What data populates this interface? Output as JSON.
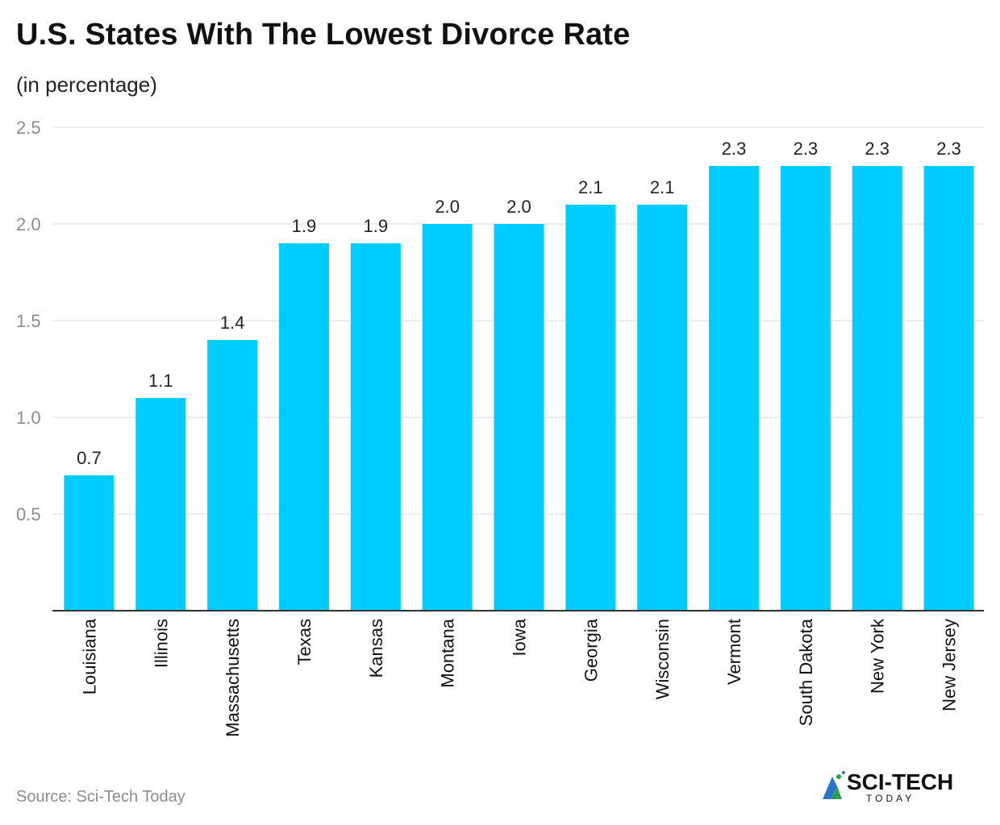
{
  "header": {
    "title": "U.S. States With The Lowest Divorce Rate",
    "subtitle": "(in percentage)"
  },
  "footer": {
    "source": "Source: Sci-Tech Today",
    "brand_main": "SCI-TECH",
    "brand_sub": "TODAY"
  },
  "colors": {
    "bar": "#00ccff",
    "grid": "#e6e6e6",
    "axis": "#333333",
    "tick_label": "#8c8c8c",
    "brand_dark": "#111111",
    "brand_blue": "#2b73c9",
    "brand_green": "#2e9e4f"
  },
  "chart_data": {
    "type": "bar",
    "categories": [
      "Louisiana",
      "Illinois",
      "Massachusetts",
      "Texas",
      "Kansas",
      "Montana",
      "Iowa",
      "Georgia",
      "Wisconsin",
      "Vermont",
      "South Dakota",
      "New York",
      "New Jersey"
    ],
    "values": [
      0.7,
      1.1,
      1.4,
      1.9,
      1.9,
      2.0,
      2.0,
      2.1,
      2.1,
      2.3,
      2.3,
      2.3,
      2.3
    ],
    "value_labels": [
      "0.7",
      "1.1",
      "1.4",
      "1.9",
      "1.9",
      "2.0",
      "2.0",
      "2.1",
      "2.1",
      "2.3",
      "2.3",
      "2.3",
      "2.3"
    ],
    "yticks": [
      0.5,
      1.0,
      1.5,
      2.0,
      2.5
    ],
    "ytick_labels": [
      "0.5",
      "1.0",
      "1.5",
      "2.0",
      "2.5"
    ],
    "ylim": [
      0,
      2.5
    ],
    "grid": true,
    "legend": "none",
    "xlabel": "",
    "ylabel": ""
  }
}
